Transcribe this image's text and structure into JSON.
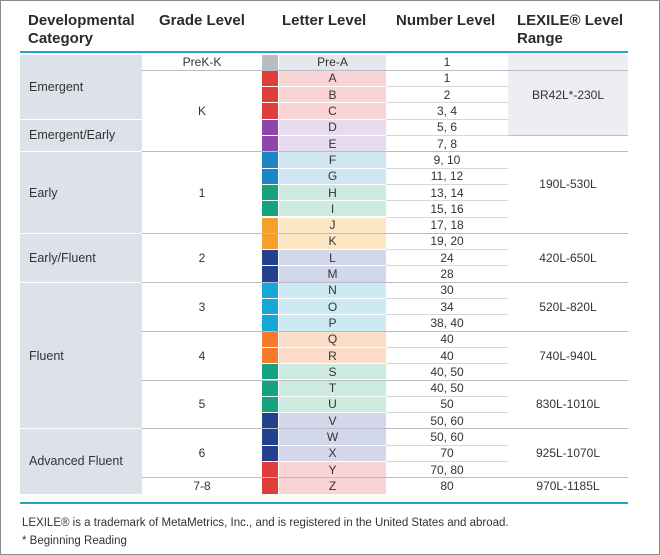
{
  "headers": {
    "category": [
      "Developmental",
      "Category"
    ],
    "grade": "Grade Level",
    "letter": "Letter Level",
    "number": "Number Level",
    "lexile": [
      "LEXILE® Level",
      "Range"
    ]
  },
  "categories": [
    {
      "label": "Emergent"
    },
    {
      "label": "Emergent/Early"
    },
    {
      "label": "Early"
    },
    {
      "label": "Early/Fluent"
    },
    {
      "label": "Fluent"
    },
    {
      "label": "Advanced Fluent"
    }
  ],
  "grades": [
    {
      "label": "PreK-K"
    },
    {
      "label": "K"
    },
    {
      "label": "1"
    },
    {
      "label": "2"
    },
    {
      "label": "3"
    },
    {
      "label": "4"
    },
    {
      "label": "5"
    },
    {
      "label": "6"
    },
    {
      "label": "7-8"
    }
  ],
  "rows": [
    {
      "letter": "Pre-A",
      "number": "1",
      "swatch": "#b9bcc6",
      "bg": "#e4e6ec"
    },
    {
      "letter": "A",
      "number": "1",
      "swatch": "#e03c3c",
      "bg": "#fad4d4"
    },
    {
      "letter": "B",
      "number": "2",
      "swatch": "#e03c3c",
      "bg": "#fad4d4"
    },
    {
      "letter": "C",
      "number": "3, 4",
      "swatch": "#e03c3c",
      "bg": "#fad4d4"
    },
    {
      "letter": "D",
      "number": "5, 6",
      "swatch": "#8e47a8",
      "bg": "#e7dbef"
    },
    {
      "letter": "E",
      "number": "7, 8",
      "swatch": "#8e47a8",
      "bg": "#e7dbef"
    },
    {
      "letter": "F",
      "number": "9, 10",
      "swatch": "#1b86c6",
      "bg": "#cfe6f2"
    },
    {
      "letter": "G",
      "number": "11, 12",
      "swatch": "#1b86c6",
      "bg": "#cfe6f2"
    },
    {
      "letter": "H",
      "number": "13, 14",
      "swatch": "#14a37f",
      "bg": "#cdeae0"
    },
    {
      "letter": "I",
      "number": "15, 16",
      "swatch": "#14a37f",
      "bg": "#cdeae0"
    },
    {
      "letter": "J",
      "number": "17, 18",
      "swatch": "#f5a02a",
      "bg": "#fde6c4"
    },
    {
      "letter": "K",
      "number": "19, 20",
      "swatch": "#f5a02a",
      "bg": "#fde6c4"
    },
    {
      "letter": "L",
      "number": "24",
      "swatch": "#23418f",
      "bg": "#d2d8ea"
    },
    {
      "letter": "M",
      "number": "28",
      "swatch": "#23418f",
      "bg": "#d2d8ea"
    },
    {
      "letter": "N",
      "number": "30",
      "swatch": "#15a9d8",
      "bg": "#cceaf4"
    },
    {
      "letter": "O",
      "number": "34",
      "swatch": "#15a9d8",
      "bg": "#cceaf4"
    },
    {
      "letter": "P",
      "number": "38, 40",
      "swatch": "#15a9d8",
      "bg": "#cceaf4"
    },
    {
      "letter": "Q",
      "number": "40",
      "swatch": "#f57a2e",
      "bg": "#fbdcc9"
    },
    {
      "letter": "R",
      "number": "40",
      "swatch": "#f57a2e",
      "bg": "#fbdcc9"
    },
    {
      "letter": "S",
      "number": "40, 50",
      "swatch": "#14a37f",
      "bg": "#cdeae0"
    },
    {
      "letter": "T",
      "number": "40, 50",
      "swatch": "#14a37f",
      "bg": "#cdeae0"
    },
    {
      "letter": "U",
      "number": "50",
      "swatch": "#14a37f",
      "bg": "#cdeae0"
    },
    {
      "letter": "V",
      "number": "50, 60",
      "swatch": "#23418f",
      "bg": "#d2d8ea"
    },
    {
      "letter": "W",
      "number": "50, 60",
      "swatch": "#23418f",
      "bg": "#d2d8ea"
    },
    {
      "letter": "X",
      "number": "70",
      "swatch": "#23418f",
      "bg": "#d2d8ea"
    },
    {
      "letter": "Y",
      "number": "70, 80",
      "swatch": "#e03c3c",
      "bg": "#fad4d4"
    },
    {
      "letter": "Z",
      "number": "80",
      "swatch": "#e03c3c",
      "bg": "#fad4d4"
    }
  ],
  "lexile": [
    {
      "label": "BR42L*-230L"
    },
    {
      "label": "190L-530L"
    },
    {
      "label": "420L-650L"
    },
    {
      "label": "520L-820L"
    },
    {
      "label": "740L-940L"
    },
    {
      "label": "830L-1010L"
    },
    {
      "label": "925L-1070L"
    },
    {
      "label": "970L-1185L"
    }
  ],
  "footnotes": {
    "trademark": "LEXILE® is a trademark of MetaMetrics, Inc., and is registered in the United States and abroad.",
    "note": "* Beginning Reading"
  },
  "colors": {
    "rule": "#27a3c4",
    "category_bg": "#dde1ea"
  }
}
